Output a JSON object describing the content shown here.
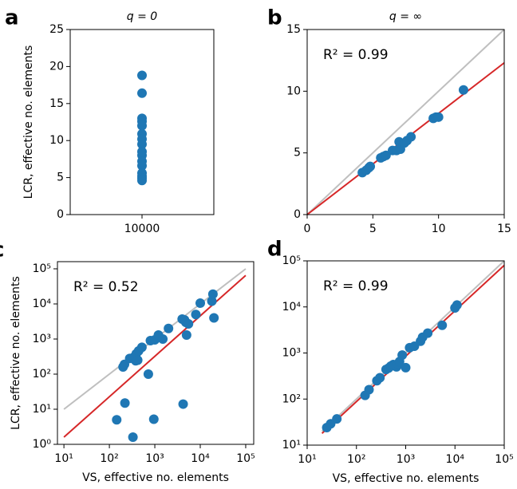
{
  "chart_data": [
    {
      "type": "scatter",
      "label": "a",
      "title": "q = 0",
      "ylabel": "LCR, effective no. elements",
      "x": [
        10000,
        10000,
        10000,
        10000,
        10000,
        10000,
        10000,
        10000,
        10000,
        10000,
        10000,
        10000,
        10000,
        10000,
        10000,
        10000
      ],
      "y": [
        18.8,
        16.4,
        13.0,
        12.6,
        12.0,
        10.9,
        10.2,
        9.5,
        8.5,
        8.0,
        7.2,
        6.6,
        5.6,
        5.2,
        4.9,
        4.6
      ],
      "color": "#1f77b4",
      "xlim": [
        9990,
        10010
      ],
      "xticks": [
        10000
      ],
      "ylim": [
        0,
        25
      ],
      "yticks": [
        0,
        5,
        10,
        15,
        20,
        25
      ]
    },
    {
      "type": "scatter",
      "label": "b",
      "title": "q = ∞",
      "annotation": "R² = 0.99",
      "x": [
        4.2,
        4.5,
        4.7,
        4.8,
        5.6,
        5.8,
        6.0,
        6.5,
        6.8,
        7.0,
        7.1,
        7.4,
        7.6,
        7.9,
        9.6,
        9.8,
        10.0,
        11.9
      ],
      "y": [
        3.4,
        3.6,
        3.8,
        3.9,
        4.6,
        4.7,
        4.8,
        5.2,
        5.2,
        5.9,
        5.3,
        5.8,
        6.0,
        6.3,
        7.8,
        7.9,
        7.9,
        10.1
      ],
      "color": "#1f77b4",
      "xlim": [
        0,
        15
      ],
      "xticks": [
        0,
        5,
        10,
        15
      ],
      "ylim": [
        0,
        15
      ],
      "yticks": [
        0,
        5,
        10,
        15
      ],
      "lines": [
        {
          "color": "#bfbfbf",
          "x": [
            0,
            15
          ],
          "y": [
            0,
            15
          ]
        },
        {
          "color": "#d62728",
          "x": [
            0,
            15
          ],
          "y": [
            0,
            12.3
          ]
        }
      ]
    },
    {
      "type": "scatter",
      "label": "c",
      "annotation": "R² = 0.52",
      "xlabel": "VS, effective no. elements",
      "ylabel": "LCR, effective no. elements",
      "log": true,
      "x": [
        145,
        200,
        215,
        220,
        280,
        330,
        340,
        380,
        390,
        420,
        440,
        520,
        720,
        800,
        950,
        1000,
        1200,
        1500,
        2000,
        4000,
        4200,
        4500,
        4800,
        5000,
        5500,
        8000,
        10000,
        18000,
        19000,
        20000
      ],
      "y": [
        5,
        160,
        190,
        15,
        280,
        1.6,
        300,
        240,
        380,
        250,
        460,
        580,
        100,
        900,
        5.2,
        950,
        1300,
        1000,
        2000,
        3700,
        14,
        3500,
        3000,
        1300,
        2700,
        5000,
        10500,
        12000,
        19000,
        4000
      ],
      "color": "#1f77b4",
      "xlim": [
        7.2,
        150000
      ],
      "ylim": [
        1,
        160000
      ],
      "xticks": [
        {
          "value": 10,
          "label": "10¹"
        },
        {
          "value": 100,
          "label": "10²"
        },
        {
          "value": 1000,
          "label": "10³"
        },
        {
          "value": 10000,
          "label": "10⁴"
        },
        {
          "value": 100000,
          "label": "10⁵"
        }
      ],
      "yticks": [
        {
          "value": 1,
          "label": "10⁰"
        },
        {
          "value": 10,
          "label": "10¹"
        },
        {
          "value": 100,
          "label": "10²"
        },
        {
          "value": 1000,
          "label": "10³"
        },
        {
          "value": 10000,
          "label": "10⁴"
        },
        {
          "value": 100000,
          "label": "10⁵"
        }
      ],
      "lines": [
        {
          "color": "#bfbfbf",
          "x": [
            10,
            100000
          ],
          "y": [
            10,
            100000
          ]
        },
        {
          "color": "#d62728",
          "x": [
            10,
            100000
          ],
          "y": [
            1.6,
            65000
          ]
        }
      ]
    },
    {
      "type": "scatter",
      "label": "d",
      "annotation": "R² = 0.99",
      "xlabel": "VS, effective no. elements",
      "log": true,
      "x": [
        25,
        30,
        40,
        150,
        180,
        260,
        300,
        400,
        450,
        500,
        560,
        650,
        700,
        750,
        850,
        1000,
        1200,
        1500,
        2000,
        2200,
        2800,
        5500,
        10000,
        11000
      ],
      "y": [
        24,
        29,
        37,
        120,
        160,
        250,
        290,
        440,
        470,
        520,
        560,
        500,
        580,
        650,
        900,
        480,
        1300,
        1400,
        1800,
        2200,
        2700,
        4000,
        9500,
        11000
      ],
      "color": "#1f77b4",
      "xlim": [
        10,
        100000
      ],
      "ylim": [
        10,
        100000
      ],
      "xticks": [
        {
          "value": 10,
          "label": "10¹"
        },
        {
          "value": 100,
          "label": "10²"
        },
        {
          "value": 1000,
          "label": "10³"
        },
        {
          "value": 10000,
          "label": "10⁴"
        },
        {
          "value": 100000,
          "label": "10⁵"
        }
      ],
      "yticks": [
        {
          "value": 10,
          "label": "10¹"
        },
        {
          "value": 100,
          "label": "10²"
        },
        {
          "value": 1000,
          "label": "10³"
        },
        {
          "value": 10000,
          "label": "10⁴"
        },
        {
          "value": 100000,
          "label": "10⁵"
        }
      ],
      "lines": [
        {
          "color": "#bfbfbf",
          "x": [
            20,
            100000
          ],
          "y": [
            20,
            100000
          ]
        },
        {
          "color": "#d62728",
          "x": [
            20,
            100000
          ],
          "y": [
            18,
            80000
          ]
        }
      ]
    }
  ]
}
